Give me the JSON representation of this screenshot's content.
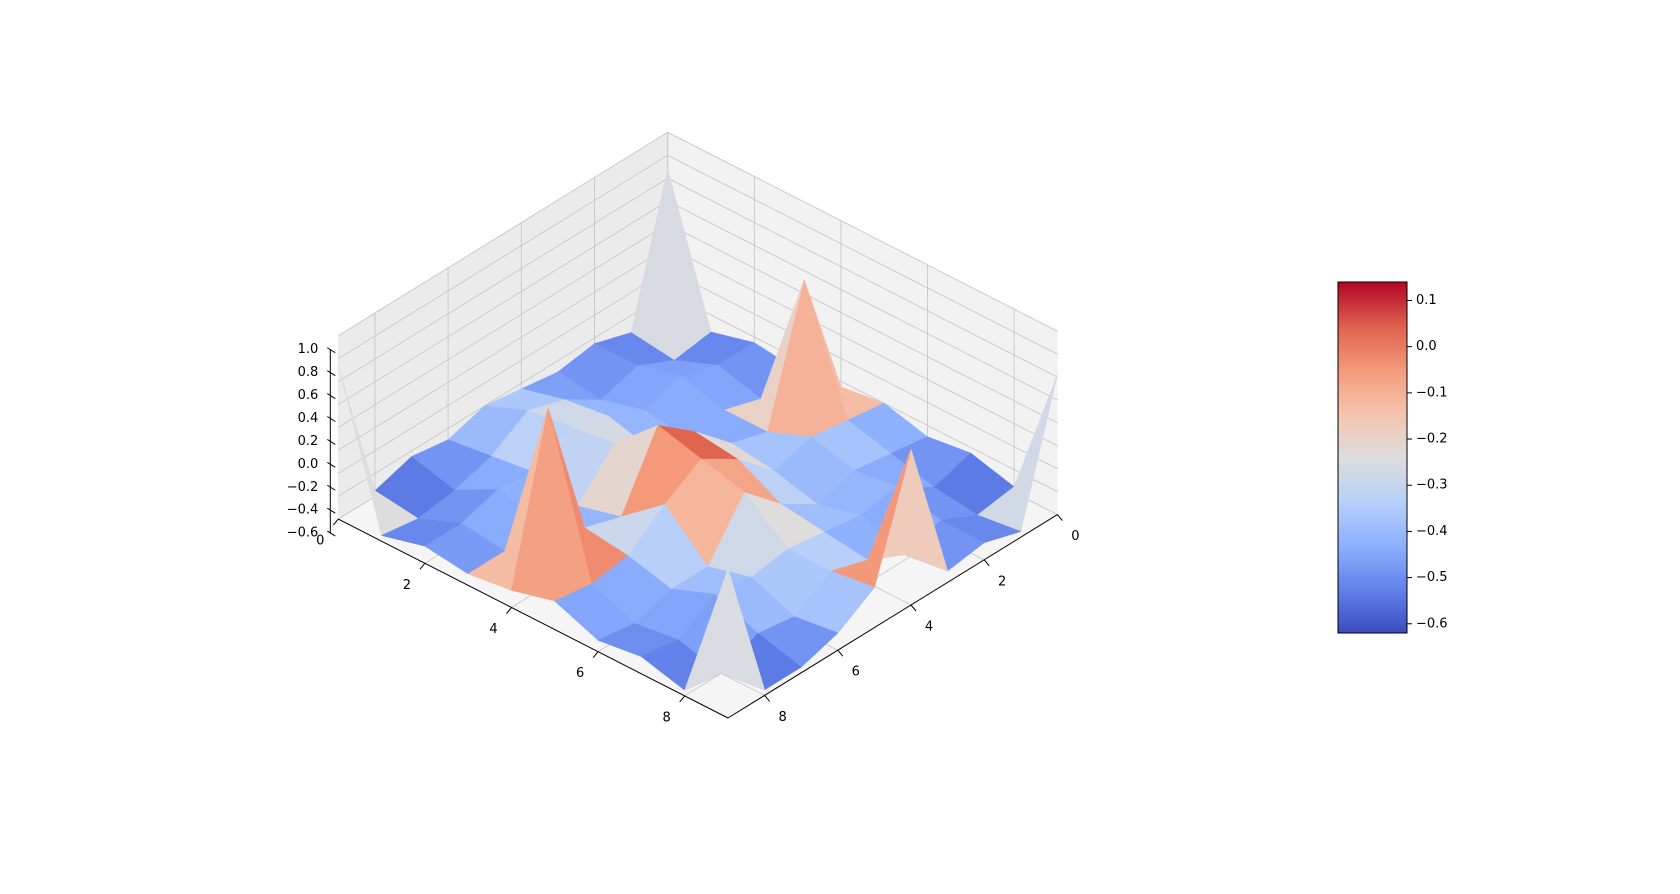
{
  "chart_data": {
    "type": "surface3d",
    "title": "",
    "xlabel": "",
    "ylabel": "",
    "zlabel": "",
    "colormap": "coolwarm",
    "x": [
      0,
      1,
      2,
      3,
      4,
      5,
      6,
      7,
      8,
      9
    ],
    "y": [
      0,
      1,
      2,
      3,
      4,
      5,
      6,
      7,
      8,
      9
    ],
    "x_ticks": [
      0,
      2,
      4,
      6,
      8
    ],
    "y_ticks": [
      0,
      2,
      4,
      6,
      8
    ],
    "z_ticks": [
      -0.6,
      -0.4,
      -0.2,
      0.0,
      0.2,
      0.4,
      0.6,
      0.8,
      1.0
    ],
    "x_tick_labels": [
      "0",
      "2",
      "4",
      "6",
      "8"
    ],
    "y_tick_labels": [
      "0",
      "2",
      "4",
      "6",
      "8"
    ],
    "z_tick_labels": [
      "−0.6",
      "−0.4",
      "−0.2",
      "0.0",
      "0.2",
      "0.4",
      "0.6",
      "0.8",
      "1.0"
    ],
    "xlim": [
      0,
      9
    ],
    "ylim": [
      0,
      9
    ],
    "zlim": [
      -0.6,
      1.0
    ],
    "view": {
      "elevation": 45,
      "azimuth": -45
    },
    "grid": true,
    "z": [
      [
        0.68,
        -0.55,
        -0.45,
        -0.5,
        -0.45,
        -0.4,
        -0.5,
        -0.45,
        -0.55,
        0.74
      ],
      [
        -0.55,
        -0.6,
        -0.45,
        -0.55,
        -0.35,
        -0.25,
        -0.45,
        -0.55,
        -0.6,
        -0.55
      ],
      [
        -0.45,
        -0.45,
        -0.35,
        -0.45,
        -0.3,
        -0.2,
        -0.4,
        -0.35,
        -0.45,
        -0.45
      ],
      [
        -0.5,
        -0.55,
        -0.45,
        -0.5,
        -0.4,
        -0.15,
        -0.5,
        -0.45,
        -0.5,
        -0.5
      ],
      [
        -0.45,
        0.68,
        -0.45,
        -0.35,
        -0.05,
        0.2,
        -0.4,
        -0.3,
        0.94,
        -0.45
      ],
      [
        -0.4,
        -0.35,
        -0.3,
        -0.4,
        -0.1,
        0.1,
        -0.1,
        -0.35,
        -0.4,
        -0.35
      ],
      [
        -0.5,
        -0.45,
        -0.4,
        -0.5,
        -0.3,
        0.0,
        -0.45,
        -0.45,
        -0.55,
        -0.5
      ],
      [
        -0.45,
        -0.55,
        -0.35,
        -0.4,
        -0.35,
        -0.3,
        -0.35,
        -0.3,
        -0.5,
        -0.45
      ],
      [
        -0.55,
        -0.6,
        -0.45,
        -0.55,
        -0.4,
        -0.3,
        -0.5,
        -0.45,
        -0.6,
        -0.55
      ],
      [
        0.62,
        -0.55,
        -0.45,
        -0.5,
        0.76,
        -0.25,
        -0.45,
        -0.55,
        -0.55,
        0.7
      ]
    ],
    "colorbar": {
      "vmin": -0.62,
      "vmax": 0.14,
      "ticks": [
        -0.6,
        -0.5,
        -0.4,
        -0.3,
        -0.2,
        -0.1,
        0.0,
        0.1
      ],
      "tick_labels": [
        "−0.6",
        "−0.5",
        "−0.4",
        "−0.3",
        "−0.2",
        "−0.1",
        "0.0",
        "0.1"
      ]
    }
  }
}
